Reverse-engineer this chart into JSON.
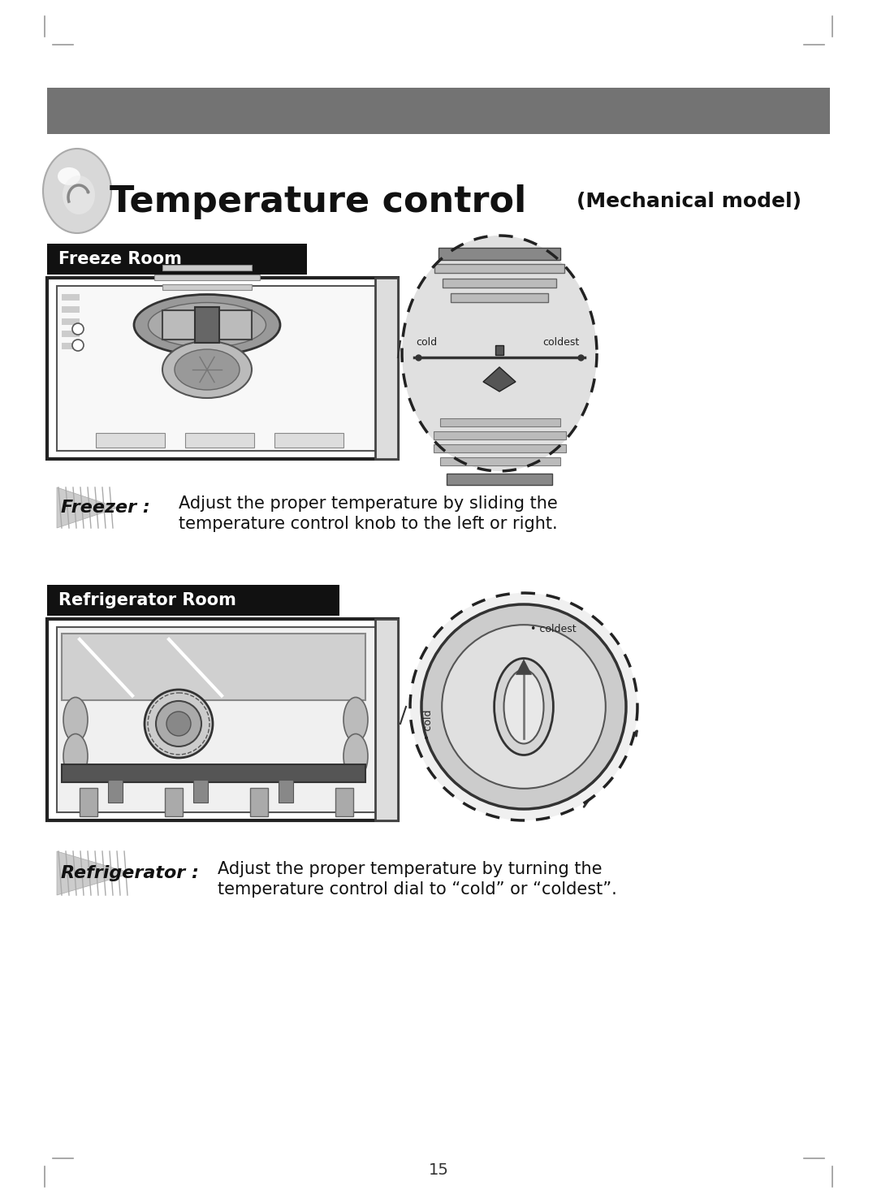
{
  "background_color": "#ffffff",
  "page_number": "15",
  "header_bar_color": "#737373",
  "title_main": "Temperature control",
  "title_sub": "(Mechanical model)",
  "section1_label": "Freeze Room",
  "section2_label": "Refrigerator Room",
  "freezer_line1": "Adjust the proper temperature by sliding the",
  "freezer_line2": "temperature control knob to the left or right.",
  "fridge_line1": "Adjust the proper temperature by turning the",
  "fridge_line2": "temperature control dial to “cold” or “coldest”.",
  "freezer_bold": "Freezer :",
  "fridge_bold": "Refrigerator :",
  "mark_color": "#999999"
}
